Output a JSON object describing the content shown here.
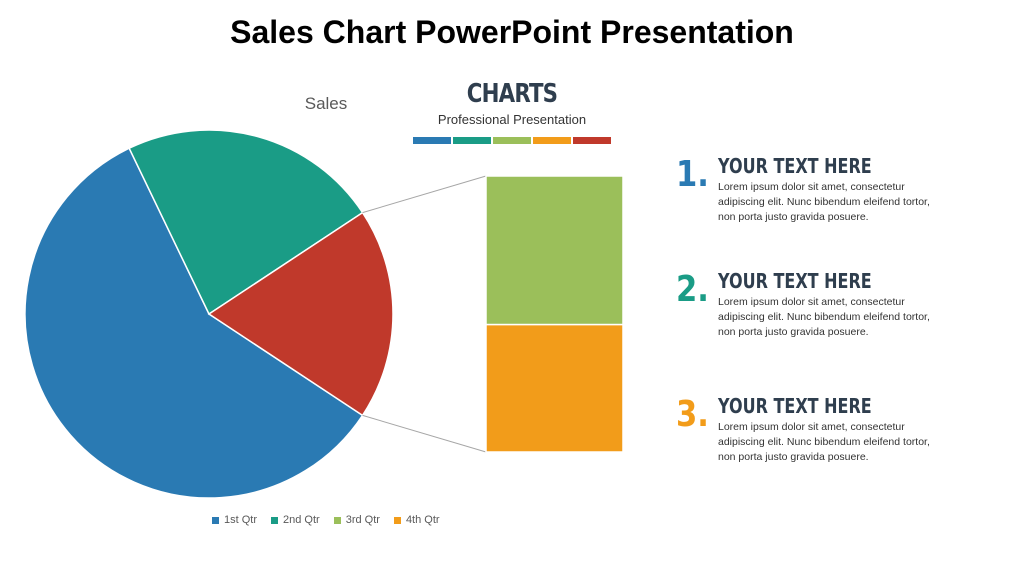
{
  "slide": {
    "title": "Sales Chart PowerPoint Presentation"
  },
  "brand": {
    "heading": "CHARTS",
    "subheading": "Professional Presentation",
    "bar_colors": [
      "#2a7ab3",
      "#1a9c86",
      "#9bbf5a",
      "#f29c1a",
      "#c0392b"
    ]
  },
  "points": [
    {
      "number": "1.",
      "heading": "YOUR TEXT HERE",
      "body": "Lorem ipsum dolor sit amet, consectetur adipiscing elit. Nunc bibendum eleifend tortor, non porta justo gravida posuere.",
      "color": "#2a7ab3"
    },
    {
      "number": "2.",
      "heading": "YOUR TEXT HERE",
      "body": "Lorem ipsum dolor sit amet, consectetur adipiscing elit. Nunc bibendum eleifend tortor, non porta justo gravida posuere.",
      "color": "#1a9c86"
    },
    {
      "number": "3.",
      "heading": "YOUR TEXT HERE",
      "body": "Lorem ipsum dolor sit amet, consectetur adipiscing elit. Nunc bibendum eleifend tortor, non porta justo gravida posuere.",
      "color": "#f29c1a"
    }
  ],
  "chart_data": {
    "type": "pie",
    "subtype": "pie-of-pie",
    "title": "Sales",
    "categories": [
      "1st Qtr",
      "2nd Qtr",
      "3rd Qtr",
      "4th Qtr"
    ],
    "values": [
      8.2,
      3.2,
      1.4,
      1.2
    ],
    "colors": [
      "#2a7ab3",
      "#1a9c86",
      "#9bbf5a",
      "#f29c1a"
    ],
    "other_slice_color": "#c0392b",
    "split": {
      "main": [
        "1st Qtr",
        "2nd Qtr"
      ],
      "secondary_stacked_bar": [
        "3rd Qtr",
        "4th Qtr"
      ]
    },
    "legend_position": "bottom"
  }
}
